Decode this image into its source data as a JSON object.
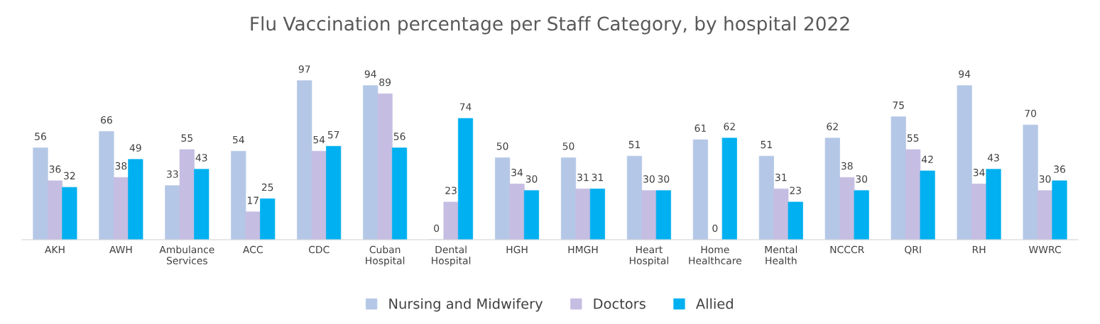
{
  "chart_data": {
    "type": "bar",
    "title": "Flu Vaccination percentage per Staff Category, by hospital 2022",
    "categories": [
      "AKH",
      "AWH",
      "Ambulance Services",
      "ACC",
      "CDC",
      "Cuban Hospital",
      "Dental Hospital",
      "HGH",
      "HMGH",
      "Heart Hospital",
      "Home Healthcare",
      "Mental Health",
      "NCCCR",
      "QRI",
      "RH",
      "WWRC"
    ],
    "series": [
      {
        "name": "Nursing and Midwifery",
        "color": "#b4c7e7",
        "values": [
          56,
          66,
          33,
          54,
          97,
          94,
          0,
          50,
          50,
          51,
          61,
          51,
          62,
          75,
          94,
          70
        ]
      },
      {
        "name": "Doctors",
        "color": "#c5bde2",
        "values": [
          36,
          38,
          55,
          17,
          54,
          89,
          23,
          34,
          31,
          30,
          0,
          31,
          38,
          55,
          34,
          30
        ]
      },
      {
        "name": "Allied",
        "color": "#00b0f0",
        "values": [
          32,
          49,
          43,
          25,
          57,
          56,
          74,
          30,
          31,
          30,
          62,
          23,
          30,
          42,
          43,
          36
        ]
      }
    ],
    "data_labels": true,
    "legend": "bottom",
    "grid": false
  }
}
